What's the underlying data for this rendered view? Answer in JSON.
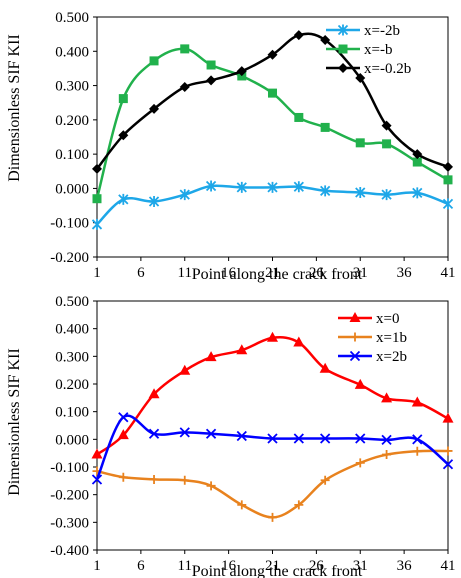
{
  "chart_data": [
    {
      "type": "line",
      "xlabel": "Point along the crack front",
      "ylabel": "Dimensionless SIF KII",
      "xlim": [
        1,
        41
      ],
      "ylim": [
        -0.2,
        0.5
      ],
      "x_ticks": [
        "1",
        "6",
        "11",
        "16",
        "21",
        "26",
        "31",
        "36",
        "41"
      ],
      "y_ticks": [
        "-0.200",
        "-0.100",
        "0.000",
        "0.100",
        "0.200",
        "0.300",
        "0.400",
        "0.500"
      ],
      "grid": false,
      "legend": "top-right",
      "x": [
        1,
        4,
        7.5,
        11,
        14,
        17.5,
        21,
        24,
        27,
        31,
        34,
        37.5,
        41
      ],
      "series": [
        {
          "name": "x=-2b",
          "color": "#1ea7e8",
          "marker": "asterisk",
          "values": [
            -0.105,
            -0.032,
            -0.038,
            -0.018,
            0.007,
            0.003,
            0.003,
            0.005,
            -0.007,
            -0.012,
            -0.018,
            -0.013,
            -0.045
          ]
        },
        {
          "name": "x=-b",
          "color": "#21b14c",
          "marker": "square",
          "values": [
            -0.03,
            0.262,
            0.372,
            0.407,
            0.36,
            0.328,
            0.278,
            0.207,
            0.178,
            0.133,
            0.13,
            0.077,
            0.025
          ]
        },
        {
          "name": "x=-0.2b",
          "color": "#000000",
          "marker": "diamond",
          "values": [
            0.057,
            0.155,
            0.232,
            0.296,
            0.315,
            0.342,
            0.39,
            0.447,
            0.433,
            0.322,
            0.183,
            0.1,
            0.063
          ]
        }
      ]
    },
    {
      "type": "line",
      "xlabel": "Point along the crack front",
      "ylabel": "Dimensionless SIF KII",
      "xlim": [
        1,
        41
      ],
      "ylim": [
        -0.4,
        0.5
      ],
      "x_ticks": [
        "1",
        "6",
        "11",
        "16",
        "21",
        "26",
        "31",
        "36",
        "41"
      ],
      "y_ticks": [
        "-0.400",
        "-0.300",
        "-0.200",
        "-0.100",
        "0.000",
        "0.100",
        "0.200",
        "0.300",
        "0.400",
        "0.500"
      ],
      "grid": false,
      "legend": "top-right",
      "x": [
        1,
        4,
        7.5,
        11,
        14,
        17.5,
        21,
        24,
        27,
        31,
        34,
        37.5,
        41
      ],
      "series": [
        {
          "name": "x=0",
          "color": "#ff0000",
          "marker": "triangle",
          "values": [
            -0.055,
            0.015,
            0.163,
            0.248,
            0.297,
            0.322,
            0.367,
            0.35,
            0.255,
            0.197,
            0.148,
            0.133,
            0.075
          ]
        },
        {
          "name": "x=1b",
          "color": "#e8821e",
          "marker": "plus",
          "values": [
            -0.115,
            -0.137,
            -0.145,
            -0.148,
            -0.168,
            -0.237,
            -0.282,
            -0.237,
            -0.148,
            -0.085,
            -0.055,
            -0.043,
            -0.042
          ]
        },
        {
          "name": "x=2b",
          "color": "#0000ff",
          "marker": "x",
          "values": [
            -0.145,
            0.08,
            0.02,
            0.025,
            0.02,
            0.012,
            0.003,
            0.003,
            0.003,
            0.003,
            -0.002,
            0.0,
            -0.09
          ]
        }
      ]
    }
  ]
}
